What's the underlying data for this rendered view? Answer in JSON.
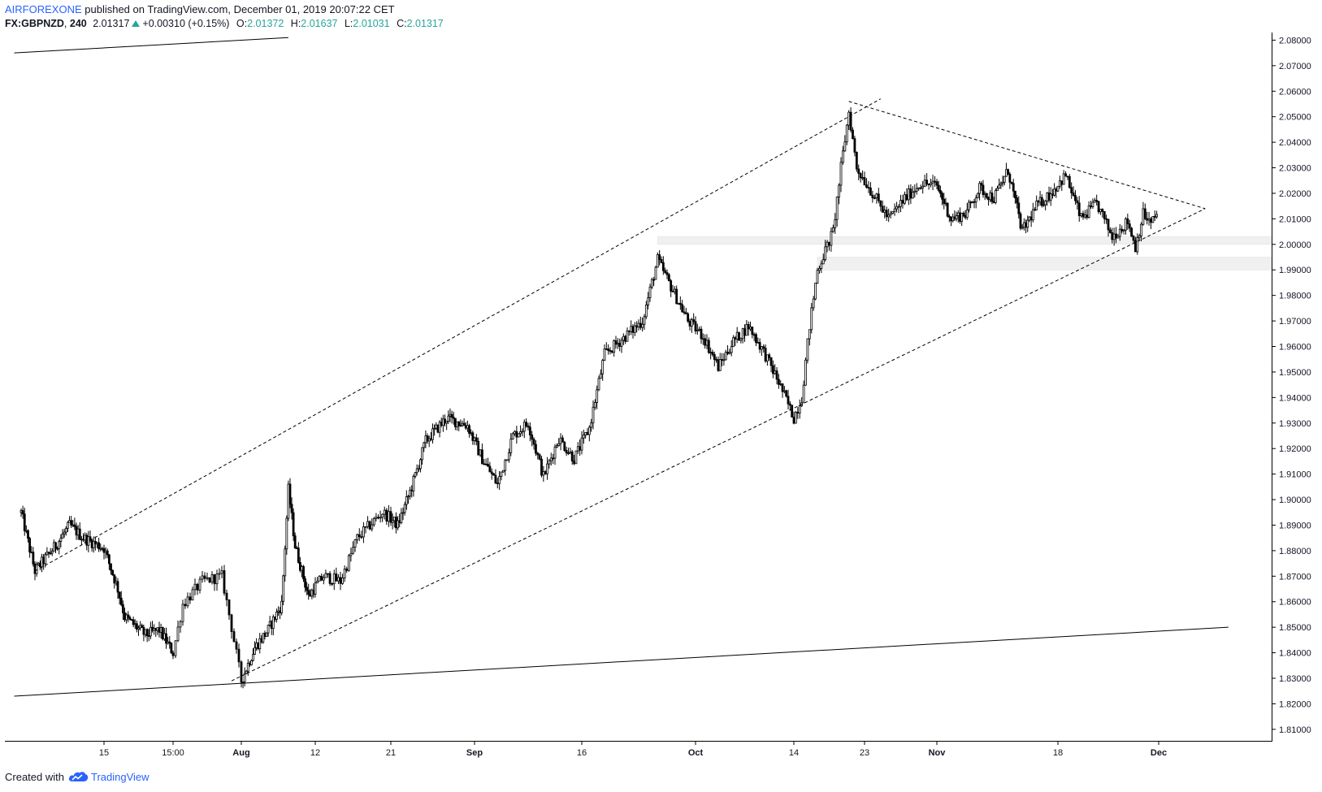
{
  "header": {
    "author": "AIRFOREXONE",
    "published_text": "published on TradingView.com, December 01, 2019 20:07:22 CET",
    "symbol": "FX:GBPNZD",
    "interval": "240",
    "last_price": "2.01317",
    "change": "+0.00310 (+0.15%)",
    "open_label": "O:",
    "open_value": "2.01372",
    "high_label": "H:",
    "high_value": "2.01637",
    "low_label": "L:",
    "low_value": "2.01031",
    "close_label": "C:",
    "close_value": "2.01317"
  },
  "footer": {
    "created_with": "Created with",
    "brand": "TradingView",
    "logo_icon": "tradingview-cloud-icon"
  },
  "colors": {
    "accent": "#2962ff",
    "up": "#26a69a",
    "candle": "#000000",
    "zone": "#f0f0f0"
  },
  "chart_data": {
    "type": "candlestick",
    "symbol": "FX:GBPNZD",
    "interval": "240",
    "y_ticks": [
      "2.08000",
      "2.07000",
      "2.06000",
      "2.05000",
      "2.04000",
      "2.03000",
      "2.02000",
      "2.01000",
      "2.00000",
      "1.99000",
      "1.98000",
      "1.97000",
      "1.96000",
      "1.95000",
      "1.94000",
      "1.93000",
      "1.92000",
      "1.91000",
      "1.90000",
      "1.89000",
      "1.88000",
      "1.87000",
      "1.86000",
      "1.85000",
      "1.84000",
      "1.83000",
      "1.82000",
      "1.81000"
    ],
    "ylim": [
      1.8055,
      2.083
    ],
    "x_ticks": [
      {
        "label": "15",
        "bold": false
      },
      {
        "label": "15:00",
        "bold": false
      },
      {
        "label": "Aug",
        "bold": true
      },
      {
        "label": "12",
        "bold": false
      },
      {
        "label": "21",
        "bold": false
      },
      {
        "label": "Sep",
        "bold": true
      },
      {
        "label": "16",
        "bold": false
      },
      {
        "label": "Oct",
        "bold": true
      },
      {
        "label": "14",
        "bold": false
      },
      {
        "label": "23",
        "bold": false
      },
      {
        "label": "Nov",
        "bold": true
      },
      {
        "label": "18",
        "bold": false
      },
      {
        "label": "Dec",
        "bold": true
      }
    ],
    "x_tick_dates": [
      "2019-07-15",
      "2019-07-25",
      "2019-08-01",
      "2019-08-12",
      "2019-08-21",
      "2019-09-02",
      "2019-09-16",
      "2019-10-01",
      "2019-10-14",
      "2019-10-23",
      "2019-11-01",
      "2019-11-18",
      "2019-12-01"
    ],
    "price_path": [
      [
        "2019-07-03",
        1.895
      ],
      [
        "2019-07-05",
        1.872
      ],
      [
        "2019-07-08",
        1.882
      ],
      [
        "2019-07-10",
        1.89
      ],
      [
        "2019-07-12",
        1.885
      ],
      [
        "2019-07-15",
        1.881
      ],
      [
        "2019-07-17",
        1.865
      ],
      [
        "2019-07-18",
        1.854
      ],
      [
        "2019-07-21",
        1.847
      ],
      [
        "2019-07-23",
        1.849
      ],
      [
        "2019-07-25",
        1.84
      ],
      [
        "2019-07-26",
        1.859
      ],
      [
        "2019-07-28",
        1.868
      ],
      [
        "2019-07-30",
        1.87
      ],
      [
        "2019-07-31",
        1.85
      ],
      [
        "2019-08-01",
        1.829
      ],
      [
        "2019-08-03",
        1.842
      ],
      [
        "2019-08-05",
        1.849
      ],
      [
        "2019-08-07",
        1.859
      ],
      [
        "2019-08-08",
        1.904
      ],
      [
        "2019-08-09",
        1.882
      ],
      [
        "2019-08-11",
        1.862
      ],
      [
        "2019-08-13",
        1.87
      ],
      [
        "2019-08-15",
        1.868
      ],
      [
        "2019-08-17",
        1.885
      ],
      [
        "2019-08-20",
        1.895
      ],
      [
        "2019-08-22",
        1.89
      ],
      [
        "2019-08-24",
        1.905
      ],
      [
        "2019-08-26",
        1.923
      ],
      [
        "2019-08-29",
        1.932
      ],
      [
        "2019-09-01",
        1.929
      ],
      [
        "2019-09-03",
        1.916
      ],
      [
        "2019-09-05",
        1.906
      ],
      [
        "2019-09-07",
        1.925
      ],
      [
        "2019-09-09",
        1.93
      ],
      [
        "2019-09-11",
        1.909
      ],
      [
        "2019-09-13",
        1.924
      ],
      [
        "2019-09-15",
        1.916
      ],
      [
        "2019-09-17",
        1.928
      ],
      [
        "2019-09-19",
        1.957
      ],
      [
        "2019-09-21",
        1.962
      ],
      [
        "2019-09-24",
        1.97
      ],
      [
        "2019-09-26",
        1.994
      ],
      [
        "2019-09-28",
        1.982
      ],
      [
        "2019-09-30",
        1.97
      ],
      [
        "2019-10-02",
        1.964
      ],
      [
        "2019-10-04",
        1.952
      ],
      [
        "2019-10-06",
        1.962
      ],
      [
        "2019-10-08",
        1.968
      ],
      [
        "2019-10-10",
        1.958
      ],
      [
        "2019-10-12",
        1.946
      ],
      [
        "2019-10-14",
        1.932
      ],
      [
        "2019-10-15",
        1.94
      ],
      [
        "2019-10-16",
        1.968
      ],
      [
        "2019-10-17",
        1.99
      ],
      [
        "2019-10-19",
        2.005
      ],
      [
        "2019-10-20",
        2.03
      ],
      [
        "2019-10-21",
        2.052
      ],
      [
        "2019-10-22",
        2.03
      ],
      [
        "2019-10-24",
        2.02
      ],
      [
        "2019-10-26",
        2.01
      ],
      [
        "2019-10-28",
        2.018
      ],
      [
        "2019-10-30",
        2.024
      ],
      [
        "2019-11-01",
        2.023
      ],
      [
        "2019-11-03",
        2.01
      ],
      [
        "2019-11-05",
        2.012
      ],
      [
        "2019-11-07",
        2.022
      ],
      [
        "2019-11-09",
        2.018
      ],
      [
        "2019-11-11",
        2.029
      ],
      [
        "2019-11-13",
        2.005
      ],
      [
        "2019-11-15",
        2.015
      ],
      [
        "2019-11-17",
        2.02
      ],
      [
        "2019-11-19",
        2.027
      ],
      [
        "2019-11-21",
        2.01
      ],
      [
        "2019-11-23",
        2.016
      ],
      [
        "2019-11-25",
        2.003
      ],
      [
        "2019-11-27",
        2.009
      ],
      [
        "2019-11-28",
        1.999
      ],
      [
        "2019-11-29",
        2.012
      ],
      [
        "2019-11-30",
        2.008
      ],
      [
        "2019-12-01",
        2.0132
      ]
    ],
    "trendlines": [
      {
        "style": "dashed",
        "from": [
          "2019-07-05",
          1.872
        ],
        "to": [
          "2019-10-25",
          2.057
        ]
      },
      {
        "style": "dashed",
        "from": [
          "2019-07-31",
          1.829
        ],
        "to": [
          "2019-12-07",
          2.014
        ]
      },
      {
        "style": "dashed",
        "from": [
          "2019-10-21",
          2.056
        ],
        "to": [
          "2019-12-07",
          2.014
        ]
      },
      {
        "style": "solid",
        "from": [
          "2019-07-02",
          1.823
        ],
        "to": [
          "2019-12-10",
          1.85
        ]
      },
      {
        "style": "solid",
        "from": [
          "2019-07-02",
          2.075
        ],
        "to": [
          "2019-08-08",
          2.081
        ]
      }
    ],
    "zones": [
      {
        "from_date": "2019-09-26",
        "y_top": 2.003,
        "y_bottom": 2.0
      },
      {
        "from_date": "2019-10-17",
        "y_top": 1.995,
        "y_bottom": 1.99
      }
    ]
  }
}
